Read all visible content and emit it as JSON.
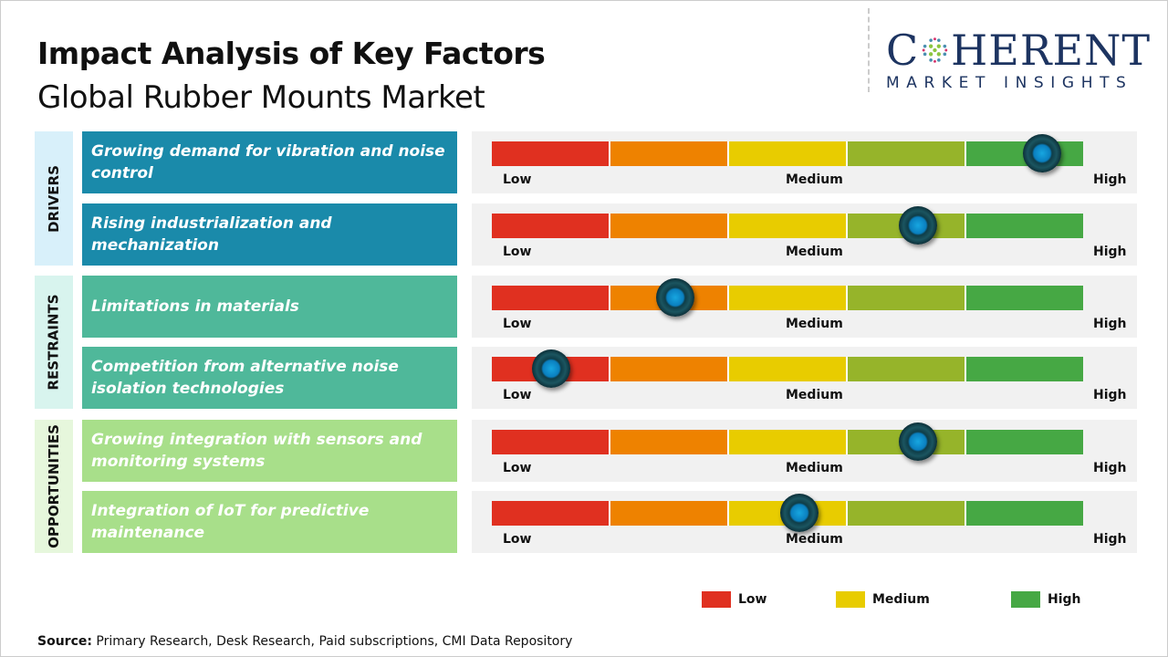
{
  "header": {
    "title": "Impact Analysis of Key Factors",
    "subtitle": "Global Rubber Mounts Market"
  },
  "logo": {
    "main_left": "C",
    "main_right": "HERENT",
    "sub": "MARKET INSIGHTS"
  },
  "colors": {
    "low": "#e03020",
    "low_mid": "#ee8200",
    "medium": "#e8cc00",
    "mid_high": "#96b42a",
    "high": "#46a844",
    "drivers": "#1a8aaa",
    "restraints": "#4fb89a",
    "opportunities": "#a8df8a",
    "knob": "#17a6e0"
  },
  "chart_data": {
    "type": "gauge",
    "scale_labels": [
      "Low",
      "Medium",
      "High"
    ],
    "scale_range": [
      0,
      1
    ],
    "categories": [
      {
        "name": "DRIVERS",
        "factors": [
          {
            "label": "Growing demand for vibration and noise control",
            "impact": 0.93
          },
          {
            "label": "Rising industrialization and mechanization",
            "impact": 0.72
          }
        ]
      },
      {
        "name": "RESTRAINTS",
        "factors": [
          {
            "label": "Limitations in materials",
            "impact": 0.31
          },
          {
            "label": "Competition from alternative noise isolation technologies",
            "impact": 0.1
          }
        ]
      },
      {
        "name": "OPPORTUNITIES",
        "factors": [
          {
            "label": "Growing integration with sensors and monitoring systems",
            "impact": 0.72
          },
          {
            "label": "Integration of IoT for predictive maintenance",
            "impact": 0.52
          }
        ]
      }
    ],
    "legend": [
      {
        "label": "Low",
        "color": "#e03020"
      },
      {
        "label": "Medium",
        "color": "#e8cc00"
      },
      {
        "label": "High",
        "color": "#46a844"
      }
    ],
    "legend_position": "bottom-right"
  },
  "source": {
    "label": "Source:",
    "text": " Primary Research, Desk Research, Paid subscriptions, CMI Data Repository"
  }
}
